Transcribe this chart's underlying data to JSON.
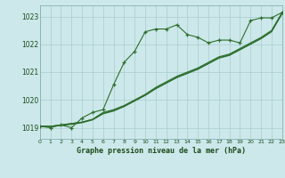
{
  "title": "Graphe pression niveau de la mer (hPa)",
  "bg_color": "#cce8ea",
  "grid_color": "#aacccc",
  "line_color": "#2d6e2d",
  "text_color": "#1a4a1a",
  "xlim": [
    0,
    23
  ],
  "ylim": [
    1018.6,
    1023.4
  ],
  "yticks": [
    1019,
    1020,
    1021,
    1022,
    1023
  ],
  "xticks": [
    0,
    1,
    2,
    3,
    4,
    5,
    6,
    7,
    8,
    9,
    10,
    11,
    12,
    13,
    14,
    15,
    16,
    17,
    18,
    19,
    20,
    21,
    22,
    23
  ],
  "series1_x": [
    0,
    1,
    2,
    3,
    4,
    5,
    6,
    7,
    8,
    9,
    10,
    11,
    12,
    13,
    14,
    15,
    16,
    17,
    18,
    19,
    20,
    21,
    22,
    23
  ],
  "series1_y": [
    1019.05,
    1019.0,
    1019.1,
    1019.0,
    1019.35,
    1019.55,
    1019.65,
    1020.55,
    1021.35,
    1021.75,
    1022.45,
    1022.55,
    1022.55,
    1022.7,
    1022.35,
    1022.25,
    1022.05,
    1022.15,
    1022.15,
    1022.05,
    1022.85,
    1022.95,
    1022.95,
    1023.15
  ],
  "series2_x": [
    0,
    1,
    2,
    3,
    4,
    5,
    6,
    7,
    8,
    9,
    10,
    11,
    12,
    13,
    14,
    15,
    16,
    17,
    18,
    19,
    20,
    21,
    22,
    23
  ],
  "series2_y": [
    1019.05,
    1019.05,
    1019.1,
    1019.15,
    1019.2,
    1019.3,
    1019.55,
    1019.65,
    1019.8,
    1020.0,
    1020.2,
    1020.45,
    1020.65,
    1020.85,
    1021.0,
    1021.15,
    1021.35,
    1021.55,
    1021.65,
    1021.85,
    1022.05,
    1022.25,
    1022.5,
    1023.15
  ],
  "series3_x": [
    0,
    1,
    2,
    3,
    4,
    5,
    6,
    7,
    8,
    9,
    10,
    11,
    12,
    13,
    14,
    15,
    16,
    17,
    18,
    19,
    20,
    21,
    22,
    23
  ],
  "series3_y": [
    1019.05,
    1019.05,
    1019.1,
    1019.15,
    1019.2,
    1019.3,
    1019.52,
    1019.62,
    1019.78,
    1019.98,
    1020.18,
    1020.42,
    1020.62,
    1020.82,
    1020.97,
    1021.12,
    1021.32,
    1021.52,
    1021.62,
    1021.82,
    1022.02,
    1022.22,
    1022.47,
    1023.12
  ],
  "series4_x": [
    0,
    1,
    2,
    3,
    4,
    5,
    6,
    7,
    8,
    9,
    10,
    11,
    12,
    13,
    14,
    15,
    16,
    17,
    18,
    19,
    20,
    21,
    22,
    23
  ],
  "series4_y": [
    1019.05,
    1019.05,
    1019.08,
    1019.12,
    1019.18,
    1019.28,
    1019.5,
    1019.6,
    1019.76,
    1019.96,
    1020.16,
    1020.4,
    1020.6,
    1020.8,
    1020.95,
    1021.1,
    1021.3,
    1021.5,
    1021.6,
    1021.8,
    1022.0,
    1022.2,
    1022.45,
    1023.1
  ]
}
